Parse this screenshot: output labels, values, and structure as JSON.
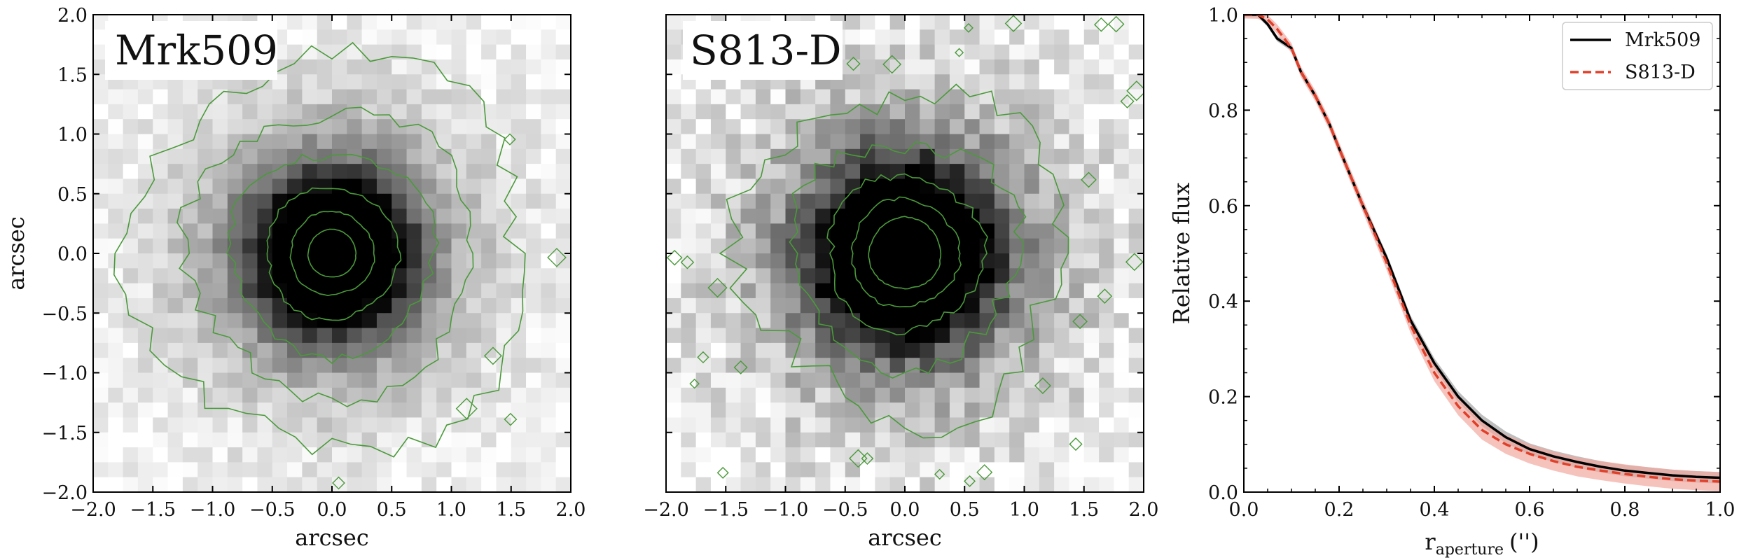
{
  "colors": {
    "contour": "#4a9a3a",
    "mrk_line": "#000000",
    "s813_line": "#e0402a",
    "mrk_band": "#8a8a8a",
    "s813_band": "#f2a8a0"
  },
  "panels": [
    {
      "title": "Mrk509",
      "xlabel": "arcsec",
      "ylabel": "arcsec",
      "xticks": [
        "−2.0",
        "−1.5",
        "−1.0",
        "−0.5",
        "0.0",
        "0.5",
        "1.0",
        "1.5",
        "2.0"
      ],
      "yticks": [
        "−2.0",
        "−1.5",
        "−1.0",
        "−0.5",
        "0.0",
        "0.5",
        "1.0",
        "1.5",
        "2.0"
      ]
    },
    {
      "title": "S813-D",
      "xlabel": "arcsec",
      "xticks": [
        "−2.0",
        "−1.5",
        "−1.0",
        "−0.5",
        "0.0",
        "0.5",
        "1.0",
        "1.5",
        "2.0"
      ]
    }
  ],
  "chart_data": [
    {
      "type": "heatmap",
      "title": "Mrk509",
      "xlabel": "arcsec",
      "ylabel": "arcsec",
      "xlim": [
        -2.0,
        2.0
      ],
      "ylim": [
        -2.0,
        2.0
      ],
      "colormap": "greys",
      "center": [
        0.0,
        0.0
      ],
      "contour_radii": [
        0.2,
        0.35,
        0.55,
        0.85,
        1.2,
        1.65
      ]
    },
    {
      "type": "heatmap",
      "title": "S813-D",
      "xlabel": "arcsec",
      "xlim": [
        -2.0,
        2.0
      ],
      "ylim": [
        -2.0,
        2.0
      ],
      "colormap": "greys",
      "center": [
        0.0,
        0.0
      ],
      "contour_radii": [
        0.3,
        0.45,
        0.65,
        0.95,
        1.35
      ]
    },
    {
      "type": "line",
      "xlabel": "r",
      "xlabel_sub": "aperture",
      "xlabel_unit": "('')",
      "ylabel": "Relative flux",
      "xlim": [
        0.0,
        1.0
      ],
      "ylim": [
        0.0,
        1.0
      ],
      "xticks": [
        "0.0",
        "0.2",
        "0.4",
        "0.6",
        "0.8",
        "1.0"
      ],
      "yticks": [
        "0.0",
        "0.2",
        "0.4",
        "0.6",
        "0.8",
        "1.0"
      ],
      "legend_position": "top-right",
      "series": [
        {
          "name": "Mrk509",
          "style": "solid",
          "x": [
            0.0,
            0.03,
            0.05,
            0.07,
            0.1,
            0.12,
            0.15,
            0.18,
            0.2,
            0.25,
            0.3,
            0.35,
            0.4,
            0.45,
            0.5,
            0.55,
            0.6,
            0.65,
            0.7,
            0.75,
            0.8,
            0.85,
            0.9,
            0.95,
            1.0
          ],
          "y": [
            1.0,
            1.0,
            0.98,
            0.95,
            0.93,
            0.88,
            0.83,
            0.77,
            0.72,
            0.6,
            0.49,
            0.36,
            0.27,
            0.2,
            0.15,
            0.115,
            0.09,
            0.075,
            0.063,
            0.053,
            0.045,
            0.04,
            0.035,
            0.032,
            0.03
          ]
        },
        {
          "name": "S813-D",
          "style": "dashed",
          "x": [
            0.0,
            0.03,
            0.05,
            0.07,
            0.1,
            0.12,
            0.15,
            0.18,
            0.2,
            0.25,
            0.3,
            0.35,
            0.4,
            0.45,
            0.5,
            0.55,
            0.6,
            0.65,
            0.7,
            0.75,
            0.8,
            0.85,
            0.9,
            0.95,
            1.0
          ],
          "y": [
            1.0,
            1.0,
            0.99,
            0.97,
            0.93,
            0.88,
            0.83,
            0.77,
            0.72,
            0.6,
            0.48,
            0.35,
            0.25,
            0.18,
            0.13,
            0.1,
            0.08,
            0.065,
            0.053,
            0.045,
            0.038,
            0.032,
            0.027,
            0.024,
            0.022
          ]
        }
      ]
    }
  ]
}
